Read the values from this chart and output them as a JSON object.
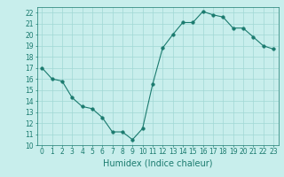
{
  "x": [
    0,
    1,
    2,
    3,
    4,
    5,
    6,
    7,
    8,
    9,
    10,
    11,
    12,
    13,
    14,
    15,
    16,
    17,
    18,
    19,
    20,
    21,
    22,
    23
  ],
  "y": [
    17,
    16,
    15.8,
    14.3,
    13.5,
    13.3,
    12.5,
    11.2,
    11.2,
    10.5,
    11.5,
    15.5,
    18.8,
    20.0,
    21.1,
    21.1,
    22.1,
    21.8,
    21.6,
    20.6,
    20.6,
    19.8,
    19.0,
    18.7
  ],
  "line_color": "#1a7a6e",
  "marker": "o",
  "marker_size": 2.5,
  "bg_color": "#c8eeec",
  "grid_color": "#a0d8d4",
  "xlabel": "Humidex (Indice chaleur)",
  "ylim": [
    10,
    22.5
  ],
  "xlim": [
    -0.5,
    23.5
  ],
  "yticks": [
    10,
    11,
    12,
    13,
    14,
    15,
    16,
    17,
    18,
    19,
    20,
    21,
    22
  ],
  "xticks": [
    0,
    1,
    2,
    3,
    4,
    5,
    6,
    7,
    8,
    9,
    10,
    11,
    12,
    13,
    14,
    15,
    16,
    17,
    18,
    19,
    20,
    21,
    22,
    23
  ],
  "tick_fontsize": 5.5,
  "xlabel_fontsize": 7
}
